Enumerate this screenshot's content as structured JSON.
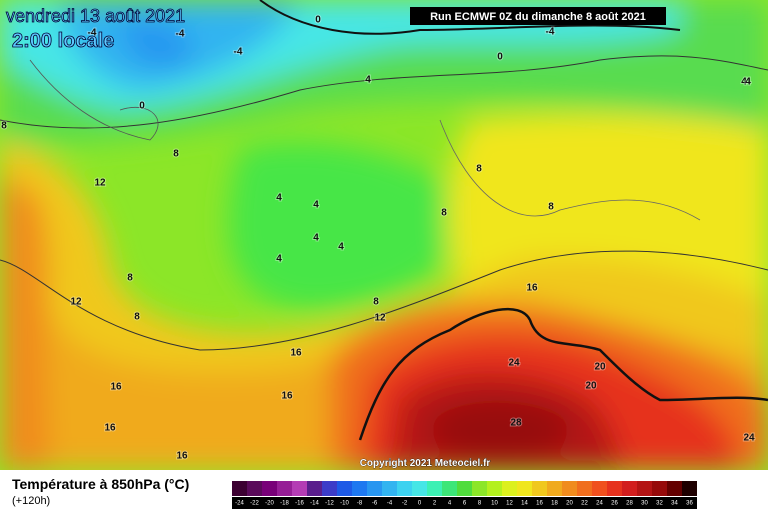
{
  "header": {
    "date": "vendredi 13 août 2021",
    "time": "2:00 locale",
    "run": "Run ECMWF 0Z du dimanche 8 août 2021",
    "copyright": "Copyright 2021 Meteociel.fr"
  },
  "legend": {
    "title": "Température à 850hPa (°C)",
    "lead": "(+120h)",
    "ticks": [
      -24,
      -22,
      -20,
      -18,
      -16,
      -14,
      -12,
      -10,
      -8,
      -6,
      -4,
      -2,
      0,
      2,
      4,
      6,
      8,
      10,
      12,
      14,
      16,
      18,
      20,
      22,
      24,
      26,
      28,
      30,
      32,
      34,
      36
    ],
    "colors": [
      "#3c0032",
      "#5a0a5a",
      "#780078",
      "#961e96",
      "#b43cb4",
      "#5a1e8c",
      "#3c3cc8",
      "#1e5ae6",
      "#1e78f0",
      "#2896f0",
      "#32b4f0",
      "#3cd2f0",
      "#46e6e6",
      "#3cf0b4",
      "#3ce678",
      "#50dc3c",
      "#8ce628",
      "#b4f01e",
      "#dcf01e",
      "#f0e61e",
      "#f0c81e",
      "#f0aa1e",
      "#f08c1e",
      "#f06e1e",
      "#f0501e",
      "#e6321e",
      "#d21e1e",
      "#b41414",
      "#960a0a",
      "#640000",
      "#1e0000"
    ]
  },
  "contour_labels": [
    "-4",
    "-4",
    "-4",
    "0",
    "-4",
    "0",
    "4",
    "4",
    "0",
    "8",
    "8",
    "12",
    "8",
    "4",
    "4",
    "4",
    "4",
    "4",
    "8",
    "8",
    "8",
    "16",
    "12",
    "8",
    "12",
    "8",
    "16",
    "24",
    "20",
    "20",
    "28",
    "24",
    "16",
    "16",
    "16",
    "16",
    "4"
  ]
}
